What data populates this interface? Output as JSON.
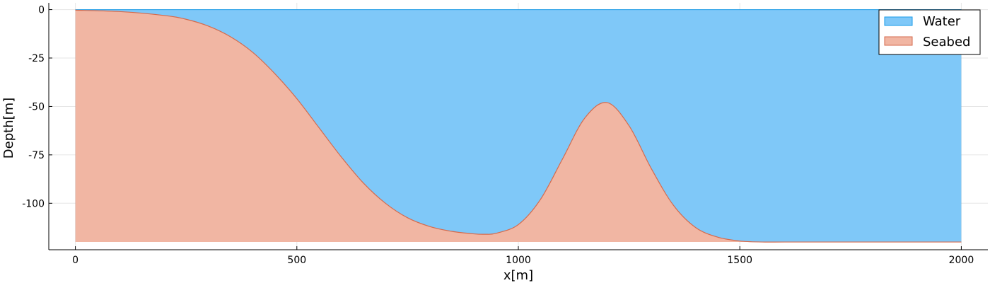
{
  "chart_data": {
    "type": "area",
    "title": "",
    "xlabel": "x[m]",
    "ylabel": "Depth[m]",
    "xlim": [
      -60,
      2060
    ],
    "ylim": [
      -124,
      3.5
    ],
    "xticks": [
      0,
      500,
      1000,
      1500,
      2000
    ],
    "xtick_labels": [
      "0",
      "500",
      "1000",
      "1500",
      "2000"
    ],
    "yticks": [
      0,
      -25,
      -50,
      -75,
      -100
    ],
    "ytick_labels": [
      "0",
      "-25",
      "-50",
      "-75",
      "-100"
    ],
    "grid": true,
    "legend_position": "top-right",
    "fill_bottom": -120,
    "x": [
      0,
      100,
      200,
      250,
      300,
      350,
      400,
      450,
      500,
      550,
      600,
      650,
      700,
      750,
      800,
      850,
      900,
      925,
      950,
      1000,
      1050,
      1100,
      1150,
      1200,
      1250,
      1300,
      1350,
      1400,
      1450,
      1500,
      1550,
      1600,
      1700,
      1800,
      1900,
      2000
    ],
    "series": [
      {
        "name": "Water",
        "color": "#7fc8f8",
        "edge_color": "#1a9be8",
        "values": [
          0,
          0,
          0,
          0,
          0,
          0,
          0,
          0,
          0,
          0,
          0,
          0,
          0,
          0,
          0,
          0,
          0,
          0,
          0,
          0,
          0,
          0,
          0,
          0,
          0,
          0,
          0,
          0,
          0,
          0,
          0,
          0,
          0,
          0,
          0,
          0
        ]
      },
      {
        "name": "Seabed",
        "color": "#f1b6a3",
        "edge_color": "#d56a4c",
        "values": [
          -0.3,
          -1.0,
          -3.0,
          -5.0,
          -8.5,
          -14.0,
          -22.0,
          -33.0,
          -46.0,
          -61.0,
          -76.0,
          -89.5,
          -100.0,
          -107.5,
          -112.0,
          -114.5,
          -115.8,
          -116.0,
          -115.5,
          -111.0,
          -98.0,
          -77.0,
          -56.0,
          -48.0,
          -60.0,
          -82.0,
          -101.0,
          -112.5,
          -117.5,
          -119.5,
          -120.0,
          -120.0,
          -120.0,
          -120.0,
          -120.0,
          -120.0
        ]
      }
    ]
  }
}
